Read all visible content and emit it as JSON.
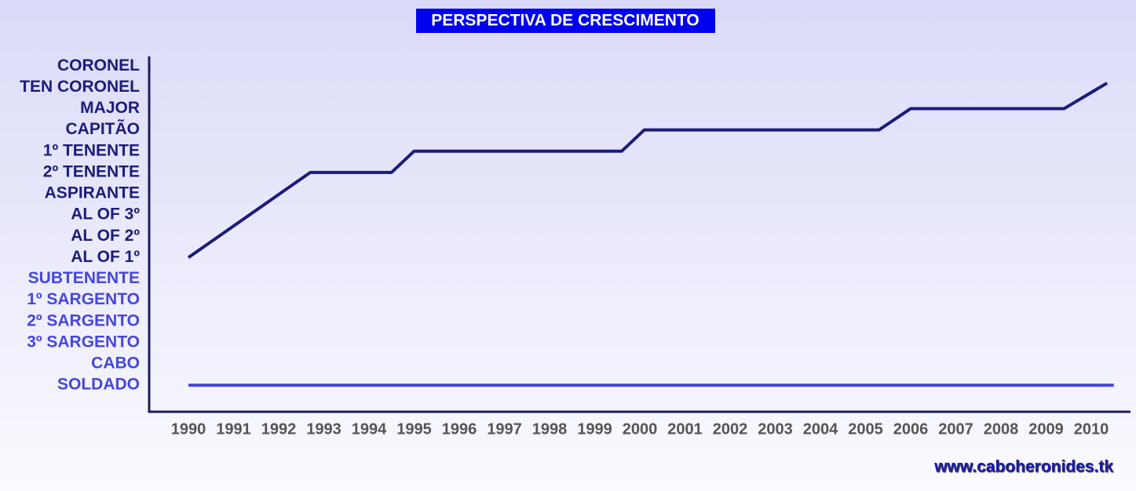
{
  "chart_data": {
    "type": "line",
    "title": "PERSPECTIVA DE CRESCIMENTO",
    "annotation": "www.caboheronides.tk",
    "series": [
      {
        "color": "#1c1c7c",
        "x": [
          1990,
          1992.7,
          1994.5,
          1995,
          1999.6,
          2000.1,
          2005.3,
          2006,
          2009.4,
          2010.35
        ],
        "values": [
          6,
          10,
          10,
          11,
          11,
          12,
          12,
          13,
          13,
          14.2
        ]
      },
      {
        "color": "#4646dc",
        "x": [
          1990,
          2010.5
        ],
        "values": [
          0,
          0
        ]
      }
    ],
    "xlim": [
      1989.95,
      2010.95
    ],
    "xticks": [
      1990,
      1991,
      1992,
      1993,
      1994,
      1995,
      1996,
      1997,
      1998,
      1999,
      2000,
      2001,
      2002,
      2003,
      2004,
      2005,
      2006,
      2007,
      2008,
      2009,
      2010
    ],
    "ylim": [
      -1.25,
      15.45
    ],
    "yticks": [
      {
        "value": 15,
        "label": "CORONEL"
      },
      {
        "value": 14,
        "label": "TEN CORONEL"
      },
      {
        "value": 13,
        "label": "MAJOR"
      },
      {
        "value": 12,
        "label": "CAPITÃO"
      },
      {
        "value": 11,
        "label": "1º TENENTE"
      },
      {
        "value": 10,
        "label": "2º TENENTE"
      },
      {
        "value": 9,
        "label": "ASPIRANTE"
      },
      {
        "value": 8,
        "label": "AL OF 3º"
      },
      {
        "value": 7,
        "label": "AL OF 2º"
      },
      {
        "value": 6,
        "label": "AL OF 1º"
      },
      {
        "value": 5,
        "label": "SUBTENENTE"
      },
      {
        "value": 4,
        "label": "1º SARGENTO"
      },
      {
        "value": 3,
        "label": "2º SARGENTO"
      },
      {
        "value": 2,
        "label": "3º SARGENTO"
      },
      {
        "value": 1,
        "label": "CABO"
      },
      {
        "value": 0,
        "label": "SOLDADO"
      }
    ],
    "ytick_colors": [
      "#1c1c7c",
      "#1c1c7c",
      "#1c1c7c",
      "#1c1c7c",
      "#1c1c7c",
      "#1c1c7c",
      "#1c1c7c",
      "#1c1c7c",
      "#1c1c7c",
      "#1c1c7c",
      "#4646dc",
      "#4646dc",
      "#4646dc",
      "#4646dc",
      "#4646dc",
      "#4646dc"
    ],
    "grid": false
  }
}
